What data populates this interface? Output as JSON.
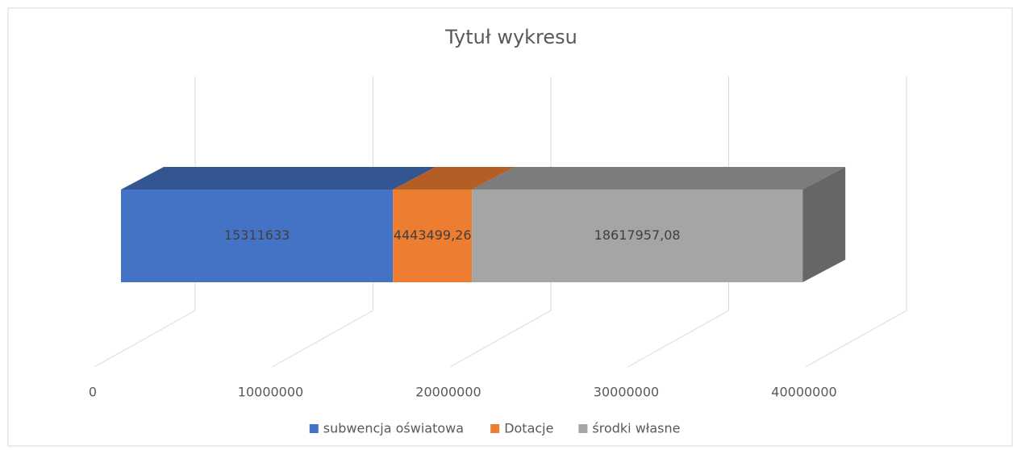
{
  "chart_data": {
    "type": "bar3d_stacked_horizontal",
    "title": "Tytuł wykresu",
    "categories": [
      null
    ],
    "series": [
      {
        "name": "subwencja oświatowa",
        "color": "#4472c4",
        "values": [
          15311633
        ],
        "value_labels": [
          "15311633"
        ]
      },
      {
        "name": "Dotacje",
        "color": "#ed7d31",
        "values": [
          4443499.26
        ],
        "value_labels": [
          "4443499,26"
        ]
      },
      {
        "name": "środki własne",
        "color": "#a5a5a5",
        "values": [
          18617957.08
        ],
        "value_labels": [
          "18617957,08"
        ]
      }
    ],
    "xlim": [
      0,
      40000000
    ],
    "xticks": [
      0,
      10000000,
      20000000,
      30000000,
      40000000
    ],
    "grid": true,
    "legend": "bottom"
  }
}
